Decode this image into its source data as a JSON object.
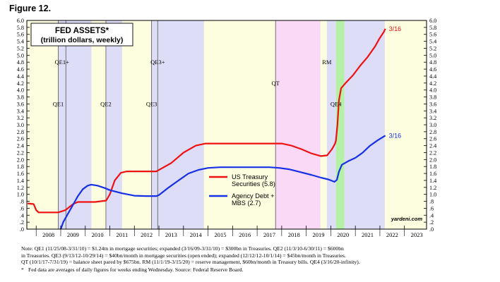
{
  "figure_label": "Figure 12.",
  "chart_data": {
    "type": "line",
    "title": "FED ASSETS*",
    "subtitle": "(trillion dollars, weekly)",
    "ylim": [
      0,
      6.0
    ],
    "y_ticks": [
      "6.0",
      "5.8",
      "5.6",
      "5.4",
      "5.2",
      "5.0",
      "4.8",
      "4.6",
      "4.4",
      "4.2",
      "4.0",
      "3.8",
      "3.6",
      "3.4",
      "3.2",
      "3.0",
      "2.8",
      "2.6",
      "2.4",
      "2.2",
      "2.0",
      "1.8",
      "1.6",
      "1.4",
      "1.2",
      "1.0",
      ".8",
      ".6",
      ".4",
      ".2",
      ".0"
    ],
    "right_y_ticks": [
      "6.0",
      "5.8",
      "5.6",
      "5.4",
      "5.2",
      "5.0",
      "4.8",
      "4.6",
      "4.4",
      "4.2",
      "4.0",
      "3.8",
      "3.6",
      "3.4",
      "3.2",
      "3.0",
      "2.8",
      "2.6",
      "2.4",
      "2.2",
      "2.0",
      "1.8",
      "1.6",
      "1.4",
      "1.2",
      "1.0",
      ".8",
      ".6",
      ".4",
      ".2",
      ".0"
    ],
    "xlim": [
      2007.62,
      2023.9
    ],
    "x_tick_labels": [
      "2008",
      "2009",
      "2010",
      "2011",
      "2012",
      "2013",
      "2014",
      "2015",
      "2016",
      "2017",
      "2018",
      "2019",
      "2020",
      "2021",
      "2022",
      "2023"
    ],
    "grid": false,
    "legend_position": "lower-middle",
    "shaded_periods": [
      {
        "label": "QE1",
        "start": 2008.9,
        "end": 2010.25,
        "color": "#ddddf8"
      },
      {
        "label": "QE1+",
        "start": 2009.21,
        "end": 2010.25,
        "color": "#ddddf8"
      },
      {
        "label": "QE2",
        "start": 2010.84,
        "end": 2011.5,
        "color": "#ddddf8"
      },
      {
        "label": "QE3",
        "start": 2012.7,
        "end": 2014.83,
        "color": "#ddddf8"
      },
      {
        "label": "QE3+",
        "start": 2012.95,
        "end": 2014.83,
        "color": "#ddddf8"
      },
      {
        "label": "QT",
        "start": 2017.75,
        "end": 2019.58,
        "color": "#f9d9f5"
      },
      {
        "label": "RM",
        "start": 2019.84,
        "end": 2020.21,
        "color": "#ddddf8"
      },
      {
        "label": "QE4",
        "start": 2020.21,
        "end": 2020.55,
        "color": "#b4f0a5"
      },
      {
        "label": "",
        "start": 2020.55,
        "end": 2022.2,
        "color": "#ddddf8"
      }
    ],
    "period_labels": [
      {
        "text": "QE1+",
        "x": 2009.05,
        "y": 4.8
      },
      {
        "text": "QE1",
        "x": 2008.9,
        "y": 3.6
      },
      {
        "text": "QE2",
        "x": 2010.84,
        "y": 3.6
      },
      {
        "text": "QE3+",
        "x": 2012.95,
        "y": 4.8
      },
      {
        "text": "QE3",
        "x": 2012.7,
        "y": 3.6
      },
      {
        "text": "QT",
        "x": 2017.75,
        "y": 4.2
      },
      {
        "text": "RM",
        "x": 2019.84,
        "y": 4.8
      },
      {
        "text": "QE4",
        "x": 2020.21,
        "y": 3.6
      }
    ],
    "series": [
      {
        "name": "US Treasury Securities (5.8)",
        "color": "#ee1111",
        "end_label": "3/16",
        "points": [
          [
            2007.65,
            0.74
          ],
          [
            2007.9,
            0.72
          ],
          [
            2008.0,
            0.55
          ],
          [
            2008.1,
            0.48
          ],
          [
            2008.5,
            0.48
          ],
          [
            2008.9,
            0.48
          ],
          [
            2009.2,
            0.55
          ],
          [
            2009.5,
            0.72
          ],
          [
            2009.7,
            0.78
          ],
          [
            2010.0,
            0.78
          ],
          [
            2010.4,
            0.78
          ],
          [
            2010.85,
            0.82
          ],
          [
            2011.0,
            1.0
          ],
          [
            2011.2,
            1.4
          ],
          [
            2011.45,
            1.62
          ],
          [
            2011.7,
            1.66
          ],
          [
            2012.0,
            1.66
          ],
          [
            2012.5,
            1.66
          ],
          [
            2012.9,
            1.66
          ],
          [
            2013.0,
            1.7
          ],
          [
            2013.5,
            1.9
          ],
          [
            2014.0,
            2.2
          ],
          [
            2014.5,
            2.4
          ],
          [
            2014.9,
            2.46
          ],
          [
            2015.5,
            2.46
          ],
          [
            2016.5,
            2.46
          ],
          [
            2017.5,
            2.46
          ],
          [
            2018.0,
            2.46
          ],
          [
            2018.4,
            2.4
          ],
          [
            2018.8,
            2.3
          ],
          [
            2019.2,
            2.18
          ],
          [
            2019.6,
            2.1
          ],
          [
            2019.85,
            2.12
          ],
          [
            2020.05,
            2.3
          ],
          [
            2020.17,
            2.45
          ],
          [
            2020.21,
            2.55
          ],
          [
            2020.27,
            3.0
          ],
          [
            2020.33,
            3.7
          ],
          [
            2020.42,
            4.05
          ],
          [
            2020.6,
            4.2
          ],
          [
            2020.9,
            4.42
          ],
          [
            2021.2,
            4.7
          ],
          [
            2021.5,
            4.95
          ],
          [
            2021.8,
            5.25
          ],
          [
            2022.0,
            5.5
          ],
          [
            2022.15,
            5.66
          ],
          [
            2022.22,
            5.76
          ]
        ]
      },
      {
        "name": "Agency Debt + MBS (2.7)",
        "color": "#1530e6",
        "end_label": "3/16",
        "points": [
          [
            2009.0,
            0.0
          ],
          [
            2009.1,
            0.2
          ],
          [
            2009.3,
            0.45
          ],
          [
            2009.5,
            0.7
          ],
          [
            2009.7,
            0.95
          ],
          [
            2009.9,
            1.15
          ],
          [
            2010.1,
            1.25
          ],
          [
            2010.25,
            1.28
          ],
          [
            2010.5,
            1.25
          ],
          [
            2010.8,
            1.18
          ],
          [
            2011.0,
            1.12
          ],
          [
            2011.5,
            1.03
          ],
          [
            2012.0,
            0.96
          ],
          [
            2012.5,
            0.95
          ],
          [
            2012.9,
            0.95
          ],
          [
            2013.0,
            0.98
          ],
          [
            2013.4,
            1.2
          ],
          [
            2013.8,
            1.4
          ],
          [
            2014.2,
            1.6
          ],
          [
            2014.6,
            1.7
          ],
          [
            2015.0,
            1.76
          ],
          [
            2015.5,
            1.78
          ],
          [
            2016.5,
            1.78
          ],
          [
            2017.5,
            1.78
          ],
          [
            2017.9,
            1.76
          ],
          [
            2018.3,
            1.72
          ],
          [
            2018.7,
            1.65
          ],
          [
            2019.2,
            1.56
          ],
          [
            2019.6,
            1.48
          ],
          [
            2019.9,
            1.43
          ],
          [
            2020.15,
            1.36
          ],
          [
            2020.25,
            1.42
          ],
          [
            2020.33,
            1.65
          ],
          [
            2020.45,
            1.85
          ],
          [
            2020.7,
            1.95
          ],
          [
            2021.0,
            2.05
          ],
          [
            2021.3,
            2.2
          ],
          [
            2021.6,
            2.4
          ],
          [
            2021.9,
            2.55
          ],
          [
            2022.22,
            2.69
          ]
        ]
      }
    ],
    "source_tag": "yardeni.com"
  },
  "notes": [
    "Note: QE1 (11/25/08-3/31/10) = $1.24tn in mortgage securities; expanded (3/16/09-3/31/10) = $300bn in Treasuries. QE2 (11/3/10-6/30/11) = $600bn",
    "in Treasuries. QE3 (9/13/12-10/29/14) = $40bn/month in mortgage securities (open ended); expanded (12/12/12-10/1/14) = $45bn/month in Treasuries.",
    "QT (10/1/17-7/31/19) = balance sheet pared by $675bn. RM (11/1/19-3/15/20) = reserve management, $60bn/month in Treasury bills. QE4 (3/16/20-infinity)."
  ],
  "footnote_marker": "*",
  "footnote": "Fed data are averages of daily figures for weeks ending Wednesday. Source: Federal Reserve Board."
}
